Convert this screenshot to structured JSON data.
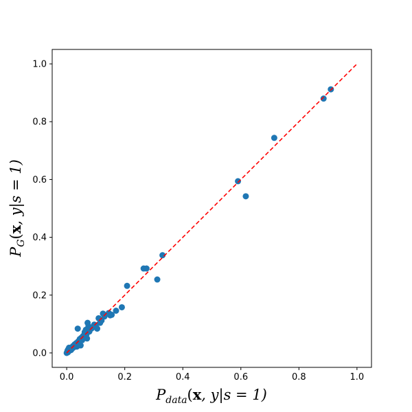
{
  "chart_data": {
    "type": "scatter",
    "title": "",
    "xlabel": {
      "base": "P",
      "sub": "data",
      "open": "(",
      "vec": "x",
      "rest": ", y|s = 1)"
    },
    "ylabel": {
      "base": "P",
      "sub": "G",
      "open": "(",
      "vec": "x",
      "rest": ", y|s = 1)"
    },
    "xlim": [
      -0.05,
      1.05
    ],
    "ylim": [
      -0.05,
      1.05
    ],
    "xticks": [
      "0.0",
      "0.2",
      "0.4",
      "0.6",
      "0.8",
      "1.0"
    ],
    "yticks": [
      "0.0",
      "0.2",
      "0.4",
      "0.6",
      "0.8",
      "1.0"
    ],
    "grid": false,
    "marker_color": "#1f77b4",
    "reference_line": {
      "from": [
        0,
        0
      ],
      "to": [
        1,
        1
      ],
      "color": "#ff0000",
      "style": "dashed"
    },
    "series": [
      {
        "points": [
          [
            0.0,
            0.0
          ],
          [
            0.002,
            0.004
          ],
          [
            0.003,
            0.008
          ],
          [
            0.004,
            0.002
          ],
          [
            0.005,
            0.012
          ],
          [
            0.006,
            0.006
          ],
          [
            0.008,
            0.018
          ],
          [
            0.01,
            0.008
          ],
          [
            0.012,
            0.014
          ],
          [
            0.015,
            0.01
          ],
          [
            0.018,
            0.02
          ],
          [
            0.02,
            0.016
          ],
          [
            0.022,
            0.024
          ],
          [
            0.025,
            0.02
          ],
          [
            0.028,
            0.03
          ],
          [
            0.03,
            0.026
          ],
          [
            0.033,
            0.034
          ],
          [
            0.035,
            0.022
          ],
          [
            0.038,
            0.084
          ],
          [
            0.04,
            0.04
          ],
          [
            0.043,
            0.036
          ],
          [
            0.045,
            0.048
          ],
          [
            0.048,
            0.026
          ],
          [
            0.05,
            0.052
          ],
          [
            0.053,
            0.044
          ],
          [
            0.056,
            0.058
          ],
          [
            0.058,
            0.05
          ],
          [
            0.06,
            0.062
          ],
          [
            0.062,
            0.072
          ],
          [
            0.064,
            0.056
          ],
          [
            0.066,
            0.08
          ],
          [
            0.068,
            0.064
          ],
          [
            0.07,
            0.05
          ],
          [
            0.072,
            0.104
          ],
          [
            0.075,
            0.092
          ],
          [
            0.078,
            0.074
          ],
          [
            0.08,
            0.086
          ],
          [
            0.085,
            0.084
          ],
          [
            0.09,
            0.09
          ],
          [
            0.095,
            0.098
          ],
          [
            0.1,
            0.094
          ],
          [
            0.105,
            0.084
          ],
          [
            0.11,
            0.12
          ],
          [
            0.115,
            0.104
          ],
          [
            0.12,
            0.112
          ],
          [
            0.125,
            0.136
          ],
          [
            0.13,
            0.126
          ],
          [
            0.145,
            0.138
          ],
          [
            0.15,
            0.13
          ],
          [
            0.155,
            0.132
          ],
          [
            0.17,
            0.146
          ],
          [
            0.19,
            0.158
          ],
          [
            0.208,
            0.232
          ],
          [
            0.265,
            0.292
          ],
          [
            0.275,
            0.292
          ],
          [
            0.312,
            0.254
          ],
          [
            0.33,
            0.338
          ],
          [
            0.59,
            0.594
          ],
          [
            0.617,
            0.542
          ],
          [
            0.715,
            0.744
          ],
          [
            0.885,
            0.88
          ],
          [
            0.91,
            0.912
          ]
        ]
      }
    ]
  }
}
